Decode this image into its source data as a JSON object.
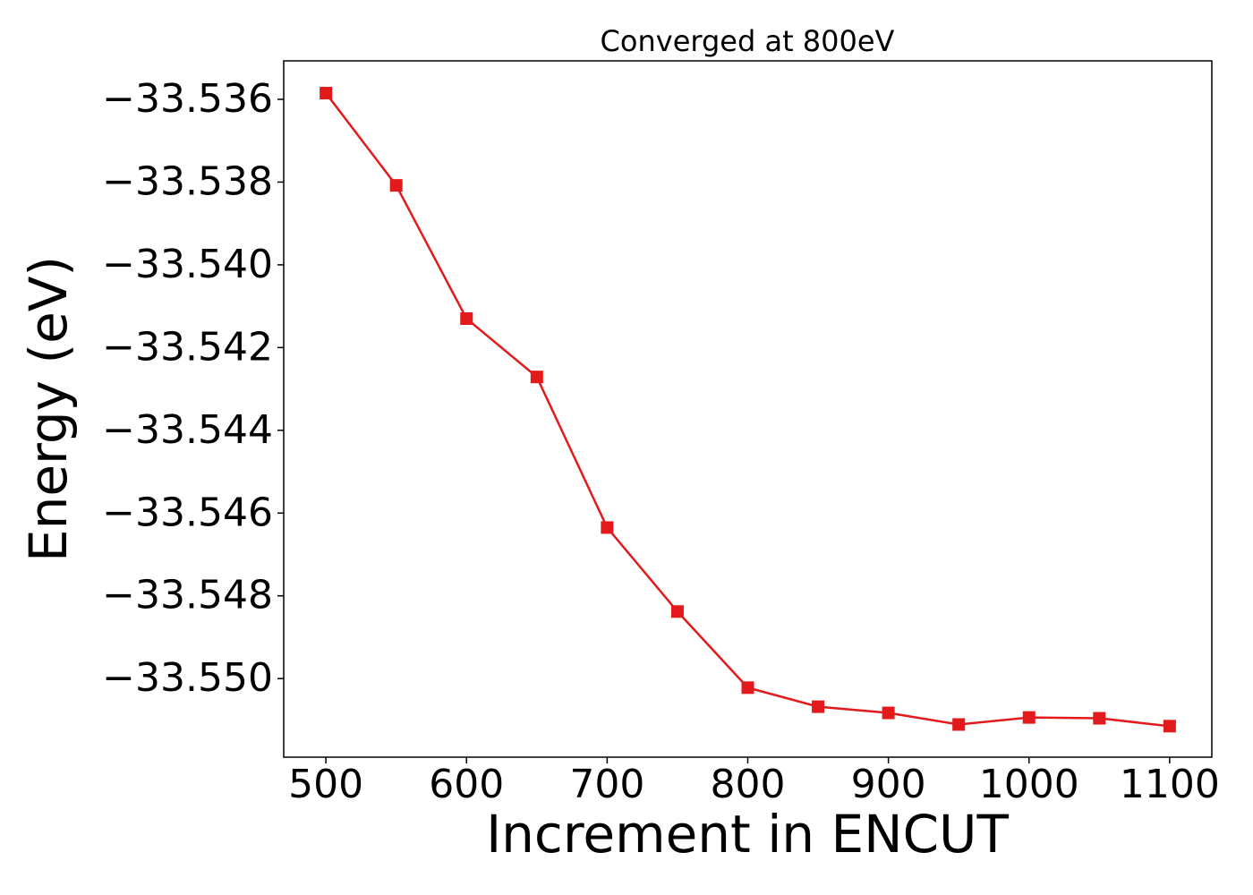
{
  "chart_data": {
    "type": "line",
    "title": "Converged at 800eV",
    "x_label": "Increment in ENCUT",
    "y_label": "Energy (eV)",
    "x": [
      500,
      550,
      600,
      650,
      700,
      750,
      800,
      850,
      900,
      950,
      1000,
      1050,
      1100
    ],
    "series": [
      {
        "name": "Energy",
        "color": "#e31a1c",
        "values": [
          -33.53585,
          -33.53808,
          -33.5413,
          -33.54271,
          -33.54635,
          -33.54838,
          -33.55022,
          -33.55068,
          -33.55083,
          -33.55111,
          -33.55094,
          -33.55096,
          -33.55115
        ]
      }
    ],
    "xlim": [
      470,
      1130
    ],
    "xticks": [
      500,
      600,
      700,
      800,
      900,
      1000,
      1100
    ],
    "ylim": [
      -33.5519,
      -33.53507
    ],
    "yticks": [
      {
        "value": -33.536,
        "label": "−33.536"
      },
      {
        "value": -33.538,
        "label": "−33.538"
      },
      {
        "value": -33.54,
        "label": "−33.540"
      },
      {
        "value": -33.542,
        "label": "−33.542"
      },
      {
        "value": -33.544,
        "label": "−33.544"
      },
      {
        "value": -33.546,
        "label": "−33.546"
      },
      {
        "value": -33.548,
        "label": "−33.548"
      },
      {
        "value": -33.55,
        "label": "−33.550"
      }
    ],
    "grid": false,
    "marker": "square"
  }
}
